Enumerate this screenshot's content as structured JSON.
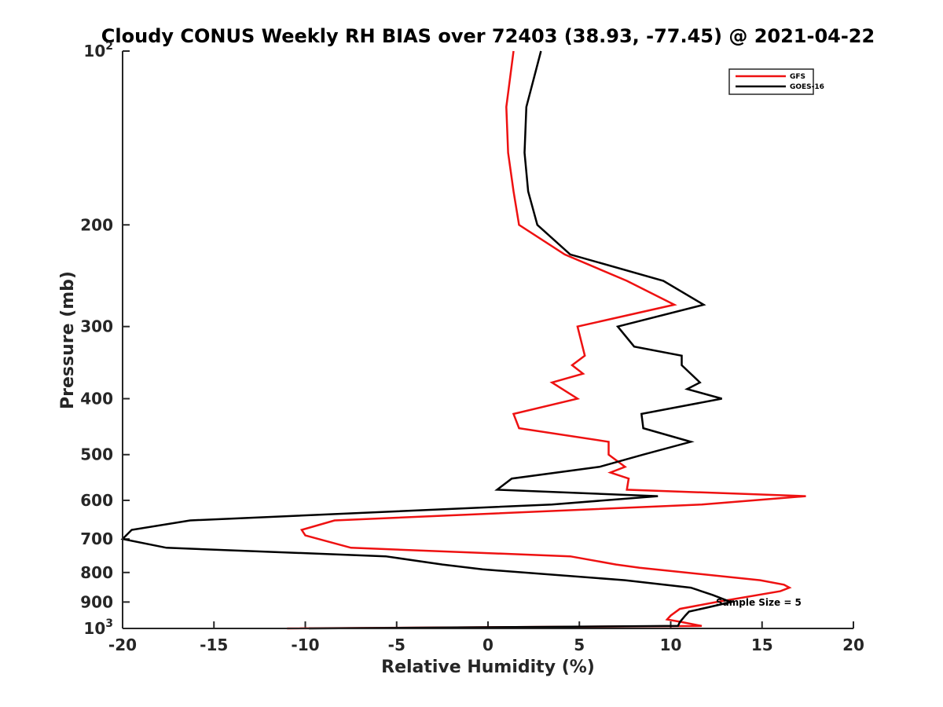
{
  "chart_data": {
    "type": "line",
    "title": "Cloudy CONUS Weekly RH BIAS over 72403 (38.93, -77.45) @ 2021-04-22",
    "xlabel": "Relative Humidity (%)",
    "ylabel": "Pressure (mb)",
    "xlim": [
      -20,
      20
    ],
    "ylim": [
      100,
      1000
    ],
    "y_scale": "log",
    "y_reversed": true,
    "grid": false,
    "legend_placement": "top-right",
    "x_ticks": [
      "-20",
      "-15",
      "-10",
      "-5",
      "0",
      "5",
      "10",
      "15",
      "20"
    ],
    "y_ticks": [
      {
        "value": 100,
        "base": "10",
        "exp": "2"
      },
      {
        "value": 200,
        "label": "200"
      },
      {
        "value": 300,
        "label": "300"
      },
      {
        "value": 400,
        "label": "400"
      },
      {
        "value": 500,
        "label": "500"
      },
      {
        "value": 600,
        "label": "600"
      },
      {
        "value": 700,
        "label": "700"
      },
      {
        "value": 800,
        "label": "800"
      },
      {
        "value": 900,
        "label": "900"
      },
      {
        "value": 1000,
        "base": "10",
        "exp": "3"
      }
    ],
    "annotation": "Sample Size = 5",
    "series": [
      {
        "name": "GFS",
        "color": "#ee1111",
        "points": [
          [
            1.4,
            100
          ],
          [
            1.0,
            125
          ],
          [
            1.1,
            150
          ],
          [
            1.4,
            175
          ],
          [
            1.7,
            200
          ],
          [
            4.2,
            225
          ],
          [
            7.6,
            250
          ],
          [
            10.2,
            275
          ],
          [
            4.9,
            300
          ],
          [
            5.3,
            337
          ],
          [
            4.6,
            350
          ],
          [
            5.2,
            362
          ],
          [
            3.5,
            375
          ],
          [
            4.9,
            400
          ],
          [
            1.4,
            425
          ],
          [
            1.7,
            450
          ],
          [
            6.6,
            475
          ],
          [
            6.6,
            500
          ],
          [
            7.5,
            525
          ],
          [
            6.7,
            537
          ],
          [
            7.7,
            550
          ],
          [
            7.6,
            575
          ],
          [
            17.4,
            590
          ],
          [
            11.7,
            610
          ],
          [
            -8.4,
            650
          ],
          [
            -10.2,
            675
          ],
          [
            -10.0,
            690
          ],
          [
            -7.5,
            725
          ],
          [
            4.5,
            750
          ],
          [
            7.0,
            775
          ],
          [
            8.3,
            785
          ],
          [
            14.9,
            825
          ],
          [
            16.2,
            840
          ],
          [
            16.5,
            850
          ],
          [
            16.0,
            862
          ],
          [
            12.5,
            900
          ],
          [
            10.5,
            925
          ],
          [
            10.0,
            950
          ],
          [
            9.8,
            965
          ],
          [
            10.6,
            975
          ],
          [
            11.7,
            990
          ],
          [
            -11.0,
            1000
          ]
        ]
      },
      {
        "name": "GOES-16",
        "color": "#000000",
        "points": [
          [
            2.9,
            100
          ],
          [
            2.1,
            125
          ],
          [
            2.0,
            150
          ],
          [
            2.2,
            175
          ],
          [
            2.7,
            200
          ],
          [
            4.5,
            225
          ],
          [
            9.6,
            250
          ],
          [
            11.8,
            275
          ],
          [
            7.1,
            300
          ],
          [
            8.0,
            325
          ],
          [
            10.6,
            337
          ],
          [
            10.6,
            350
          ],
          [
            11.6,
            375
          ],
          [
            10.9,
            385
          ],
          [
            12.8,
            400
          ],
          [
            8.4,
            425
          ],
          [
            8.5,
            450
          ],
          [
            11.1,
            475
          ],
          [
            8.5,
            500
          ],
          [
            6.1,
            525
          ],
          [
            1.3,
            550
          ],
          [
            0.5,
            575
          ],
          [
            9.3,
            590
          ],
          [
            3.5,
            610
          ],
          [
            -16.3,
            650
          ],
          [
            -19.5,
            675
          ],
          [
            -20.0,
            700
          ],
          [
            -17.6,
            725
          ],
          [
            -5.6,
            750
          ],
          [
            -2.5,
            775
          ],
          [
            -0.3,
            790
          ],
          [
            7.5,
            825
          ],
          [
            11.1,
            850
          ],
          [
            12.3,
            875
          ],
          [
            13.3,
            900
          ],
          [
            12.0,
            920
          ],
          [
            11.0,
            935
          ],
          [
            10.8,
            950
          ],
          [
            10.5,
            975
          ],
          [
            10.4,
            990
          ],
          [
            -9.8,
            1000
          ]
        ]
      }
    ]
  }
}
